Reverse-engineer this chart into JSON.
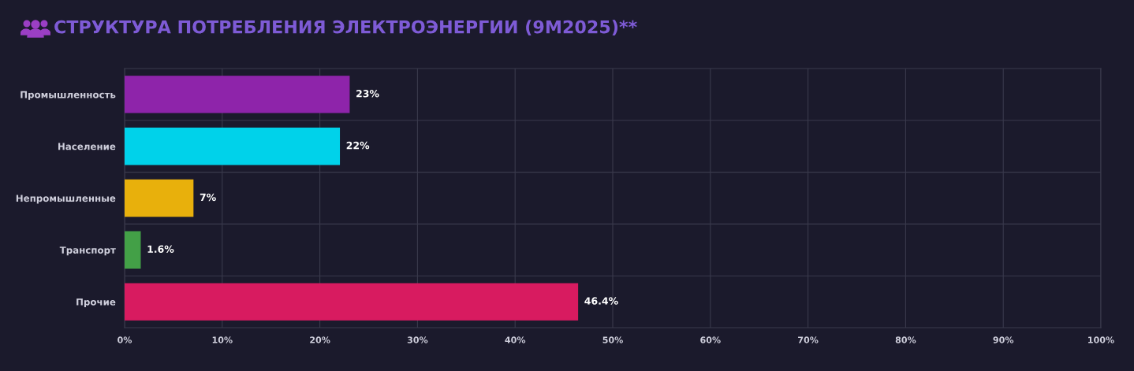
{
  "chart_data": {
    "type": "bar",
    "orientation": "horizontal",
    "title": "СТРУКТУРА ПОТРЕБЛЕНИЯ ЭЛЕКТРОЭНЕРГИИ (9М2025)**",
    "categories": [
      "Промышленность",
      "Население",
      "Непромышленные",
      "Транспорт",
      "Прочие"
    ],
    "values": [
      23,
      22,
      7,
      1.6,
      46.4
    ],
    "colors": [
      "#8e24aa",
      "#00d2ea",
      "#e8b00c",
      "#43a047",
      "#d81b60"
    ],
    "value_labels": [
      "23%",
      "22%",
      "7%",
      "1.6%",
      "46.4%"
    ],
    "xlim": [
      0,
      100
    ],
    "xticks": [
      {
        "value": 0,
        "label": "0%"
      },
      {
        "value": 10,
        "label": "10%"
      },
      {
        "value": 20,
        "label": "20%"
      },
      {
        "value": 30,
        "label": "30%"
      },
      {
        "value": 40,
        "label": "40%"
      },
      {
        "value": 50,
        "label": "50%"
      },
      {
        "value": 60,
        "label": "60%"
      },
      {
        "value": 70,
        "label": "70%"
      },
      {
        "value": 80,
        "label": "80%"
      },
      {
        "value": 90,
        "label": "90%"
      },
      {
        "value": 100,
        "label": "100%"
      }
    ],
    "grid": true
  }
}
